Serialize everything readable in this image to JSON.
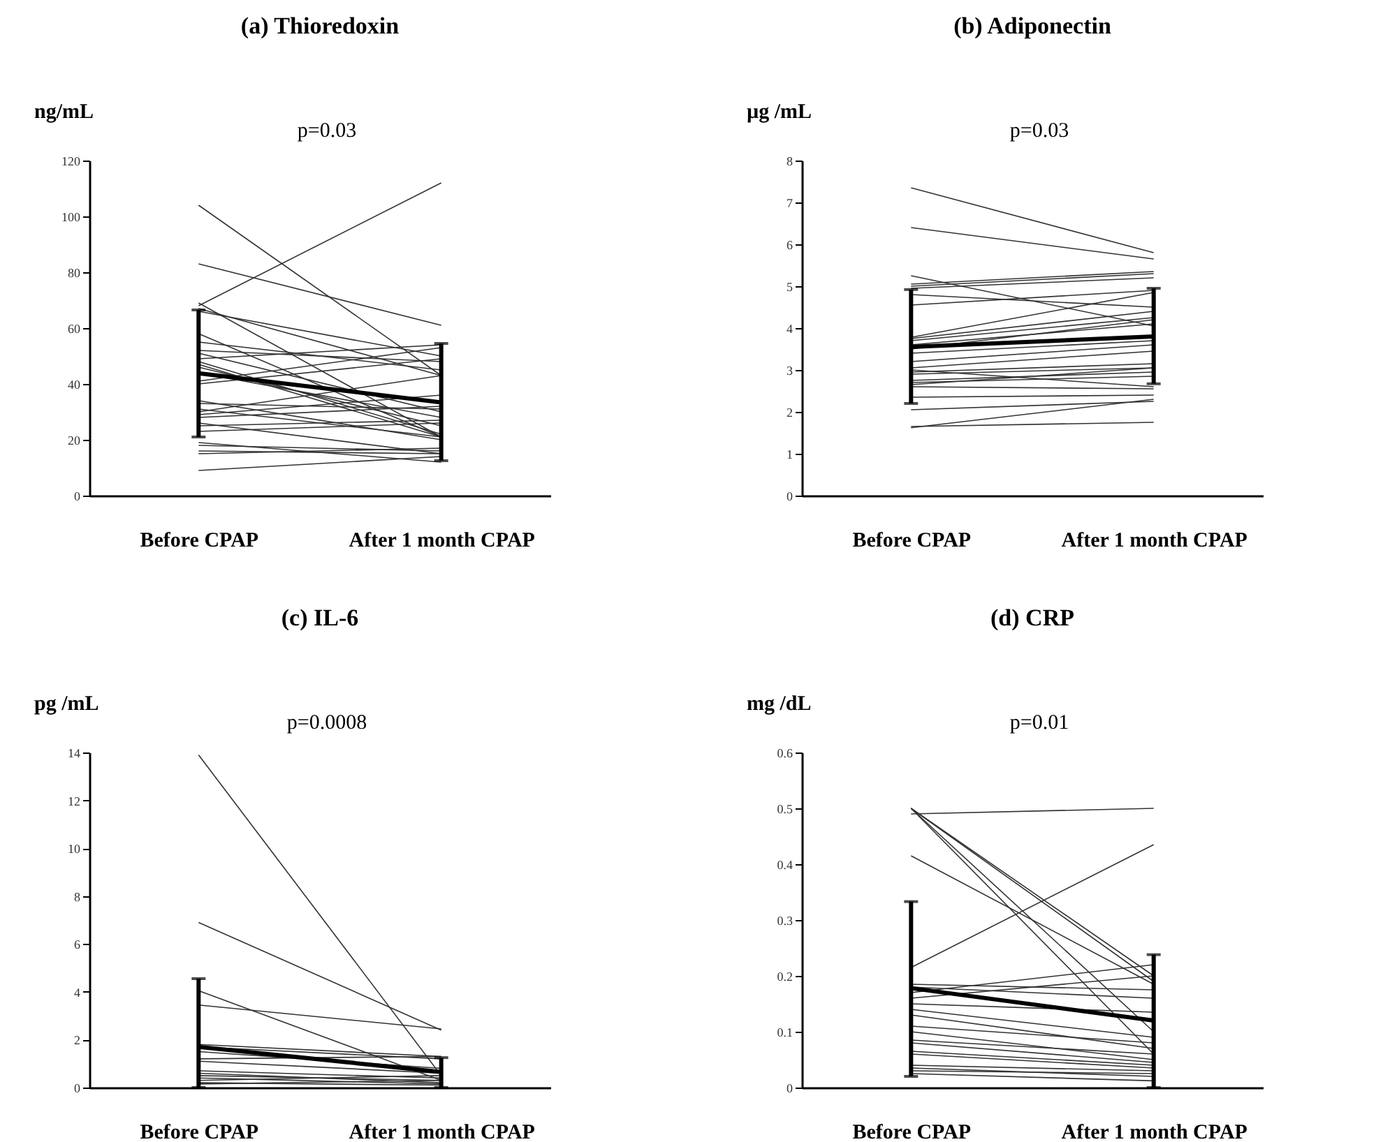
{
  "chart_data": [
    {
      "type": "line",
      "title": "(a) Thioredoxin",
      "ylabel": "ng/mL",
      "categories": [
        "Before CPAP",
        "After 1 month CPAP"
      ],
      "ylim": [
        0,
        120
      ],
      "yticks": [
        0,
        20,
        40,
        60,
        80,
        100,
        120
      ],
      "grid": false,
      "annotations": [
        "p=0.03"
      ],
      "series": [
        {
          "color": "#333333",
          "values": [
            104,
            43
          ]
        },
        {
          "color": "#333333",
          "values": [
            68,
            112
          ]
        },
        {
          "color": "#333333",
          "values": [
            83,
            61
          ]
        },
        {
          "color": "#333333",
          "values": [
            69,
            21
          ]
        },
        {
          "color": "#333333",
          "values": [
            67,
            43
          ]
        },
        {
          "color": "#333333",
          "values": [
            66,
            50
          ]
        },
        {
          "color": "#333333",
          "values": [
            58,
            21
          ]
        },
        {
          "color": "#333333",
          "values": [
            55,
            45
          ]
        },
        {
          "color": "#333333",
          "values": [
            52,
            48
          ]
        },
        {
          "color": "#333333",
          "values": [
            51,
            30
          ]
        },
        {
          "color": "#333333",
          "values": [
            49,
            54
          ]
        },
        {
          "color": "#333333",
          "values": [
            48,
            22
          ]
        },
        {
          "color": "#333333",
          "values": [
            47,
            21
          ]
        },
        {
          "color": "#333333",
          "values": [
            46,
            25
          ]
        },
        {
          "color": "#333333",
          "values": [
            44,
            28
          ]
        },
        {
          "color": "#333333",
          "values": [
            41,
            53
          ]
        },
        {
          "color": "#333333",
          "values": [
            40,
            49
          ]
        },
        {
          "color": "#333333",
          "values": [
            34,
            20
          ]
        },
        {
          "color": "#333333",
          "values": [
            33,
            31
          ]
        },
        {
          "color": "#333333",
          "values": [
            31,
            21
          ]
        },
        {
          "color": "#333333",
          "values": [
            30,
            43
          ]
        },
        {
          "color": "#333333",
          "values": [
            29,
            36
          ]
        },
        {
          "color": "#333333",
          "values": [
            28,
            32
          ]
        },
        {
          "color": "#333333",
          "values": [
            26,
            15
          ]
        },
        {
          "color": "#333333",
          "values": [
            25,
            27
          ]
        },
        {
          "color": "#333333",
          "values": [
            23,
            26
          ]
        },
        {
          "color": "#333333",
          "values": [
            19,
            12
          ]
        },
        {
          "color": "#333333",
          "values": [
            18,
            16
          ]
        },
        {
          "color": "#333333",
          "values": [
            16,
            15
          ]
        },
        {
          "color": "#333333",
          "values": [
            15,
            17
          ]
        },
        {
          "color": "#333333",
          "values": [
            9,
            14
          ]
        },
        {
          "color": "#000000",
          "values": [
            43.8,
            33.4
          ],
          "errors": [
            [
              21,
              66.5
            ],
            [
              12.5,
              54.5
            ]
          ]
        }
      ]
    },
    {
      "type": "line",
      "title": "(b) Adiponectin",
      "ylabel": "µg /mL",
      "categories": [
        "Before CPAP",
        "After 1 month CPAP"
      ],
      "ylim": [
        0,
        8
      ],
      "yticks": [
        0,
        1,
        2,
        3,
        4,
        5,
        6,
        7,
        8
      ],
      "grid": false,
      "annotations": [
        "p=0.03"
      ],
      "series": [
        {
          "color": "#333333",
          "values": [
            7.35,
            5.8
          ]
        },
        {
          "color": "#333333",
          "values": [
            6.4,
            5.65
          ]
        },
        {
          "color": "#333333",
          "values": [
            5.25,
            4.05
          ]
        },
        {
          "color": "#333333",
          "values": [
            5.05,
            5.35
          ]
        },
        {
          "color": "#333333",
          "values": [
            5.0,
            5.3
          ]
        },
        {
          "color": "#333333",
          "values": [
            4.95,
            5.2
          ]
        },
        {
          "color": "#333333",
          "values": [
            4.8,
            4.5
          ]
        },
        {
          "color": "#333333",
          "values": [
            4.55,
            4.9
          ]
        },
        {
          "color": "#333333",
          "values": [
            3.78,
            4.85
          ]
        },
        {
          "color": "#333333",
          "values": [
            3.75,
            4.4
          ]
        },
        {
          "color": "#333333",
          "values": [
            3.7,
            4.25
          ]
        },
        {
          "color": "#333333",
          "values": [
            3.6,
            4.1
          ]
        },
        {
          "color": "#333333",
          "values": [
            3.5,
            4.2
          ]
        },
        {
          "color": "#333333",
          "values": [
            3.4,
            3.7
          ]
        },
        {
          "color": "#333333",
          "values": [
            3.2,
            3.6
          ]
        },
        {
          "color": "#333333",
          "values": [
            3.05,
            3.45
          ]
        },
        {
          "color": "#333333",
          "values": [
            3.0,
            2.6
          ]
        },
        {
          "color": "#333333",
          "values": [
            2.95,
            3.15
          ]
        },
        {
          "color": "#333333",
          "values": [
            2.9,
            3.05
          ]
        },
        {
          "color": "#333333",
          "values": [
            2.75,
            2.95
          ]
        },
        {
          "color": "#333333",
          "values": [
            2.7,
            2.85
          ]
        },
        {
          "color": "#333333",
          "values": [
            2.65,
            3.05
          ]
        },
        {
          "color": "#333333",
          "values": [
            2.6,
            2.55
          ]
        },
        {
          "color": "#333333",
          "values": [
            2.35,
            2.4
          ]
        },
        {
          "color": "#333333",
          "values": [
            2.05,
            2.25
          ]
        },
        {
          "color": "#333333",
          "values": [
            1.65,
            1.75
          ]
        },
        {
          "color": "#333333",
          "values": [
            1.62,
            2.3
          ]
        },
        {
          "color": "#000000",
          "values": [
            3.55,
            3.8
          ],
          "errors": [
            [
              2.2,
              4.92
            ],
            [
              2.67,
              4.95
            ]
          ]
        }
      ]
    },
    {
      "type": "line",
      "title": "(c) IL-6",
      "ylabel": "pg /mL",
      "categories": [
        "Before CPAP",
        "After 1 month CPAP"
      ],
      "ylim": [
        0,
        14
      ],
      "yticks": [
        0,
        2,
        4,
        6,
        8,
        10,
        12,
        14
      ],
      "grid": false,
      "annotations": [
        "p=0.0008"
      ],
      "series": [
        {
          "color": "#333333",
          "values": [
            13.9,
            0.5
          ]
        },
        {
          "color": "#333333",
          "values": [
            6.9,
            2.4
          ]
        },
        {
          "color": "#333333",
          "values": [
            4.05,
            0.3
          ]
        },
        {
          "color": "#333333",
          "values": [
            3.45,
            2.45
          ]
        },
        {
          "color": "#333333",
          "values": [
            1.8,
            1.3
          ]
        },
        {
          "color": "#333333",
          "values": [
            1.7,
            1.2
          ]
        },
        {
          "color": "#333333",
          "values": [
            1.5,
            0.8
          ]
        },
        {
          "color": "#333333",
          "values": [
            1.2,
            1.3
          ]
        },
        {
          "color": "#333333",
          "values": [
            1.1,
            0.6
          ]
        },
        {
          "color": "#333333",
          "values": [
            0.7,
            0.4
          ]
        },
        {
          "color": "#333333",
          "values": [
            0.6,
            0.2
          ]
        },
        {
          "color": "#333333",
          "values": [
            0.5,
            0.3
          ]
        },
        {
          "color": "#333333",
          "values": [
            0.4,
            0.15
          ]
        },
        {
          "color": "#333333",
          "values": [
            0.3,
            0.5
          ]
        },
        {
          "color": "#333333",
          "values": [
            0.2,
            0.1
          ]
        },
        {
          "color": "#333333",
          "values": [
            0.15,
            0.3
          ]
        },
        {
          "color": "#000000",
          "values": [
            1.7,
            0.65
          ],
          "errors": [
            [
              0,
              4.55
            ],
            [
              0,
              1.25
            ]
          ]
        }
      ]
    },
    {
      "type": "line",
      "title": "(d) CRP",
      "ylabel": "mg /dL",
      "categories": [
        "Before CPAP",
        "After 1 month CPAP"
      ],
      "ylim": [
        0,
        0.6
      ],
      "yticks": [
        0,
        0.1,
        0.2,
        0.3,
        0.4,
        0.5,
        0.6
      ],
      "grid": false,
      "annotations": [
        "p=0.01"
      ],
      "series": [
        {
          "color": "#333333",
          "values": [
            0.5,
            0.2
          ]
        },
        {
          "color": "#333333",
          "values": [
            0.5,
            0.19
          ]
        },
        {
          "color": "#333333",
          "values": [
            0.5,
            0.1
          ]
        },
        {
          "color": "#333333",
          "values": [
            0.5,
            0.06
          ]
        },
        {
          "color": "#333333",
          "values": [
            0.49,
            0.5
          ]
        },
        {
          "color": "#333333",
          "values": [
            0.415,
            0.185
          ]
        },
        {
          "color": "#333333",
          "values": [
            0.215,
            0.435
          ]
        },
        {
          "color": "#333333",
          "values": [
            0.185,
            0.175
          ]
        },
        {
          "color": "#333333",
          "values": [
            0.18,
            0.16
          ]
        },
        {
          "color": "#333333",
          "values": [
            0.17,
            0.22
          ]
        },
        {
          "color": "#333333",
          "values": [
            0.16,
            0.2
          ]
        },
        {
          "color": "#333333",
          "values": [
            0.15,
            0.135
          ]
        },
        {
          "color": "#333333",
          "values": [
            0.14,
            0.09
          ]
        },
        {
          "color": "#333333",
          "values": [
            0.13,
            0.07
          ]
        },
        {
          "color": "#333333",
          "values": [
            0.11,
            0.08
          ]
        },
        {
          "color": "#333333",
          "values": [
            0.1,
            0.05
          ]
        },
        {
          "color": "#333333",
          "values": [
            0.085,
            0.06
          ]
        },
        {
          "color": "#333333",
          "values": [
            0.08,
            0.045
          ]
        },
        {
          "color": "#333333",
          "values": [
            0.065,
            0.04
          ]
        },
        {
          "color": "#333333",
          "values": [
            0.06,
            0.035
          ]
        },
        {
          "color": "#333333",
          "values": [
            0.04,
            0.03
          ]
        },
        {
          "color": "#333333",
          "values": [
            0.035,
            0.02
          ]
        },
        {
          "color": "#333333",
          "values": [
            0.03,
            0.025
          ]
        },
        {
          "color": "#333333",
          "values": [
            0.025,
            0.012
          ]
        },
        {
          "color": "#000000",
          "values": [
            0.178,
            0.12
          ],
          "errors": [
            [
              0.02,
              0.333
            ],
            [
              0,
              0.238
            ]
          ]
        }
      ]
    }
  ]
}
